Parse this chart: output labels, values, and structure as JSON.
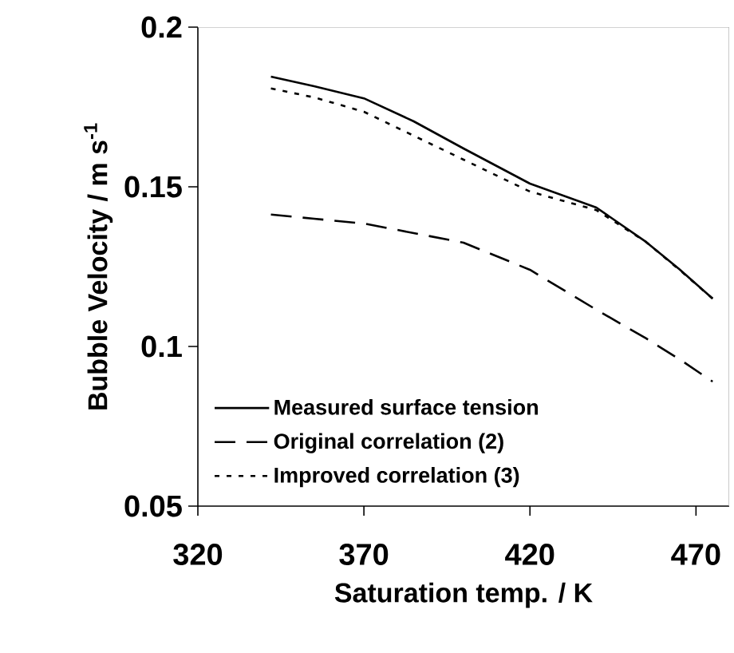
{
  "chart_data": {
    "type": "line",
    "xlabel": "Saturation temp. / K",
    "ylabel": "Bubble Velocity / m s$^{-1}$",
    "xlim": [
      320,
      480
    ],
    "xticks": [
      320,
      370,
      420,
      470
    ],
    "ylim": [
      0.05,
      0.2
    ],
    "yticks": [
      0.05,
      0.1,
      0.15,
      0.2
    ],
    "x": [
      342,
      355,
      370,
      385,
      400,
      420,
      440,
      455,
      465,
      475
    ],
    "grid": false,
    "legend": "bottom left",
    "marker": "none",
    "series": [
      {
        "name": "Measured surface tension",
        "color": "#000000",
        "line_style": "solid",
        "values": [
          0.1845,
          0.1815,
          0.1777,
          0.1705,
          0.162,
          0.151,
          0.1435,
          0.1327,
          0.1242,
          0.115
        ]
      },
      {
        "name": "Original correlation (2)",
        "color": "#000000",
        "line_style": "dashed",
        "values": [
          0.1413,
          0.14,
          0.1385,
          0.1355,
          0.1325,
          0.124,
          0.1115,
          0.1025,
          0.096,
          0.089
        ]
      },
      {
        "name": "Improved correlation (3)",
        "color": "#000000",
        "line_style": "dotted",
        "values": [
          0.1808,
          0.178,
          0.1735,
          0.166,
          0.1585,
          0.1485,
          0.1427,
          0.1327,
          0.124,
          0.115
        ]
      }
    ]
  }
}
